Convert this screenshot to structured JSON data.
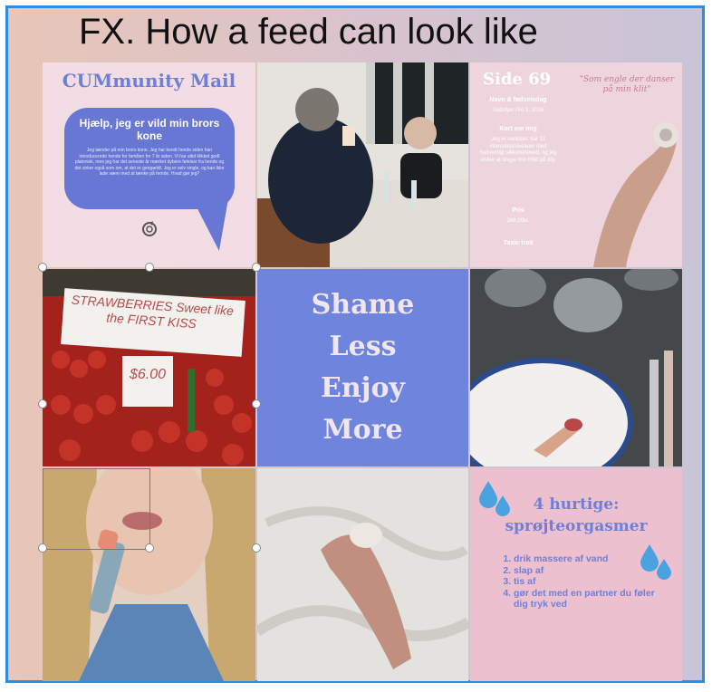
{
  "slide": {
    "title": "FX. How a feed can look like",
    "border_color": "#2f8de4"
  },
  "tiles": {
    "mail": {
      "title": "CUMmunity Mail",
      "heading": "Hjælp, jeg er vild min brors kone",
      "body": "Jeg tænder på min brors kone. Jeg har kendt hende siden han introducerede hende for familien for 7 år siden. Vi har altid klikket godt platonisk, men jeg har det seneste år mærket dybere følelser fra hende og det virker også som om, at det er gengældt. Jeg er selv single, og kan ikke lade være med at tænke på hende. Hvad gør jeg?"
    },
    "side69": {
      "title": "Side 69",
      "quote": "\"Som engle der danser på min klit\"",
      "name_label": "Navn & fødselsdag",
      "name_value": "Satisfyer Pro 2, 2016",
      "about_label": "Kort om mig",
      "about_value": "Jeg er vandtæt, har 11 intensitetsniveauer med hudvenligt silikonehoved, og jeg elsker at bruge min fritid på dig.",
      "price_label": "Pris",
      "price_value": "268,00kr.",
      "toxic_label": "Toxic trait"
    },
    "strawberry": {
      "sign": "STRAWBERRIES Sweet like the FIRST KISS",
      "price": "$6.00"
    },
    "shameless": {
      "lines": [
        "Shame",
        "Less",
        "Enjoy",
        "More"
      ]
    },
    "tips": {
      "heading_line1": "4 hurtige:",
      "heading_line2": "sprøjteorgasmer",
      "items": [
        "drik massere af vand",
        "slap af",
        "tis af",
        "gør det med en partner du føler dig tryk ved"
      ]
    }
  },
  "colors": {
    "accent_blue": "#6877d3",
    "pink_light": "#f2dde4",
    "pink_mid": "#edc0cf",
    "periwinkle": "#6f84dd"
  },
  "icons": {
    "rotate": "rotate-handle-icon",
    "drops": "water-drops-icon"
  }
}
